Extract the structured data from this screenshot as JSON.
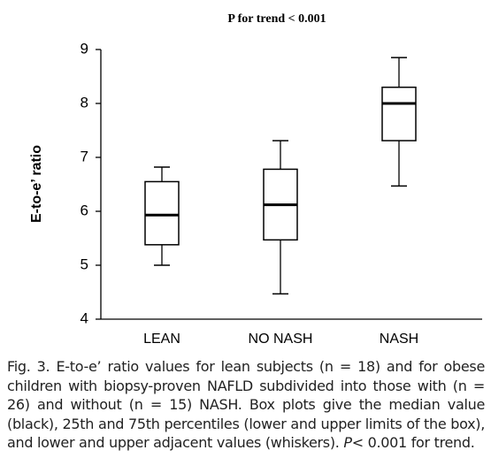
{
  "chart_data": {
    "type": "box",
    "title": "P for trend < 0.001",
    "y_label": "E-to-e’ ratio",
    "categories": [
      "LEAN",
      "NO NASH",
      "NASH"
    ],
    "boxes": [
      {
        "whislo": 5.0,
        "q1": 5.38,
        "med": 5.93,
        "q3": 6.55,
        "whishi": 6.82
      },
      {
        "whislo": 4.47,
        "q1": 5.47,
        "med": 6.12,
        "q3": 6.78,
        "whishi": 7.31
      },
      {
        "whislo": 6.47,
        "q1": 7.31,
        "med": 8.0,
        "q3": 8.3,
        "whishi": 8.85
      }
    ],
    "color": "#000000",
    "ylim": [
      4,
      9
    ],
    "yticks": [
      4,
      5,
      6,
      7,
      8,
      9
    ],
    "grid": false
  },
  "caption": {
    "main": "Fig. 3. E-to-e’ ratio values for lean subjects (n = 18) and for obese children with biopsy-proven NAFLD subdivided into those with (n = 26) and without (n = 15) NASH. Box plots give the median value (black), 25th and 75th percentiles (lower and upper limits of the box), and lower and upper adjacent values (whiskers).",
    "p_symbol": "P",
    "end": "< 0.001 for trend."
  }
}
